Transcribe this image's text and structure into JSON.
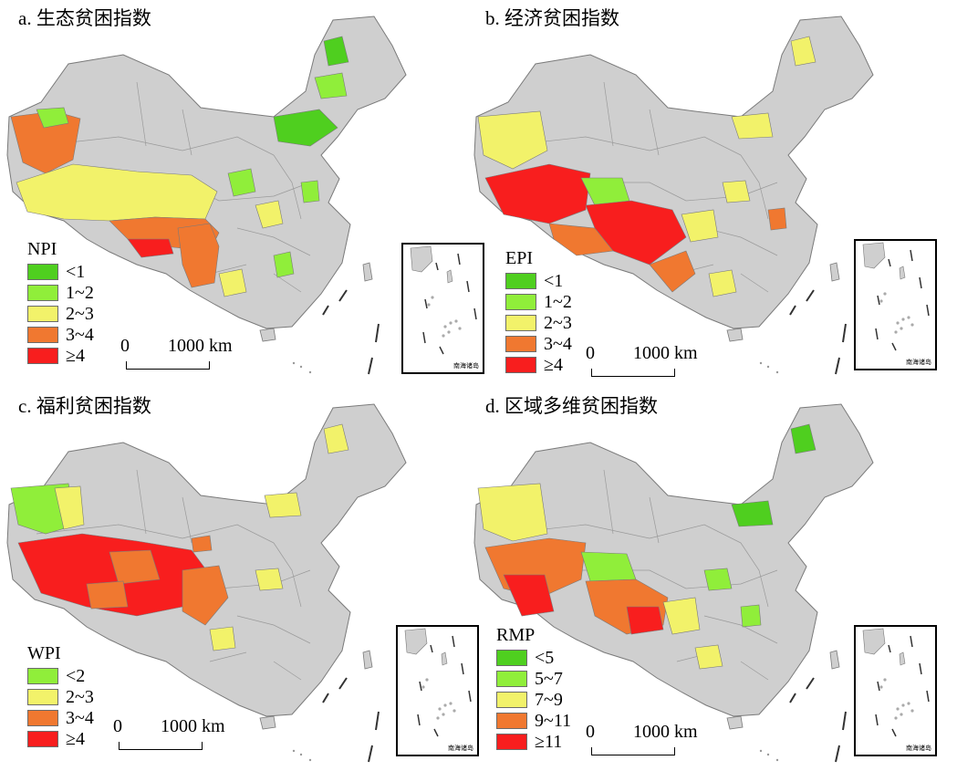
{
  "colors": {
    "base": "#cfcfcf",
    "border": "#7a7a7a",
    "dark_green": "#4fcf1f",
    "light_green": "#90ee3a",
    "yellow": "#f2f26a",
    "orange": "#f07830",
    "red": "#f81e1e"
  },
  "panels": [
    {
      "title": "a. 生态贫困指数",
      "legend_title": "NPI",
      "legend": [
        {
          "label": "<1",
          "color": "#4fcf1f"
        },
        {
          "label": "1~2",
          "color": "#90ee3a"
        },
        {
          "label": "2~3",
          "color": "#f2f26a"
        },
        {
          "label": "3~4",
          "color": "#f07830"
        },
        {
          "label": "≥4",
          "color": "#f81e1e"
        }
      ],
      "scale_zero": "0",
      "scale_dist": "1000 km",
      "inset_label": "南海诸岛"
    },
    {
      "title": "b. 经济贫困指数",
      "legend_title": "EPI",
      "legend": [
        {
          "label": "<1",
          "color": "#4fcf1f"
        },
        {
          "label": "1~2",
          "color": "#90ee3a"
        },
        {
          "label": "2~3",
          "color": "#f2f26a"
        },
        {
          "label": "3~4",
          "color": "#f07830"
        },
        {
          "label": "≥4",
          "color": "#f81e1e"
        }
      ],
      "scale_zero": "0",
      "scale_dist": "1000 km",
      "inset_label": "南海诸岛"
    },
    {
      "title": "c. 福利贫困指数",
      "legend_title": "WPI",
      "legend": [
        {
          "label": "<2",
          "color": "#90ee3a"
        },
        {
          "label": "2~3",
          "color": "#f2f26a"
        },
        {
          "label": "3~4",
          "color": "#f07830"
        },
        {
          "label": "≥4",
          "color": "#f81e1e"
        }
      ],
      "scale_zero": "0",
      "scale_dist": "1000 km",
      "inset_label": "南海诸岛"
    },
    {
      "title": "d. 区域多维贫困指数",
      "legend_title": "RMP",
      "legend": [
        {
          "label": "<5",
          "color": "#4fcf1f"
        },
        {
          "label": "5~7",
          "color": "#90ee3a"
        },
        {
          "label": "7~9",
          "color": "#f2f26a"
        },
        {
          "label": "9~11",
          "color": "#f07830"
        },
        {
          "label": "≥11",
          "color": "#f81e1e"
        }
      ],
      "scale_zero": "0",
      "scale_dist": "1000 km",
      "inset_label": "南海诸岛"
    }
  ]
}
